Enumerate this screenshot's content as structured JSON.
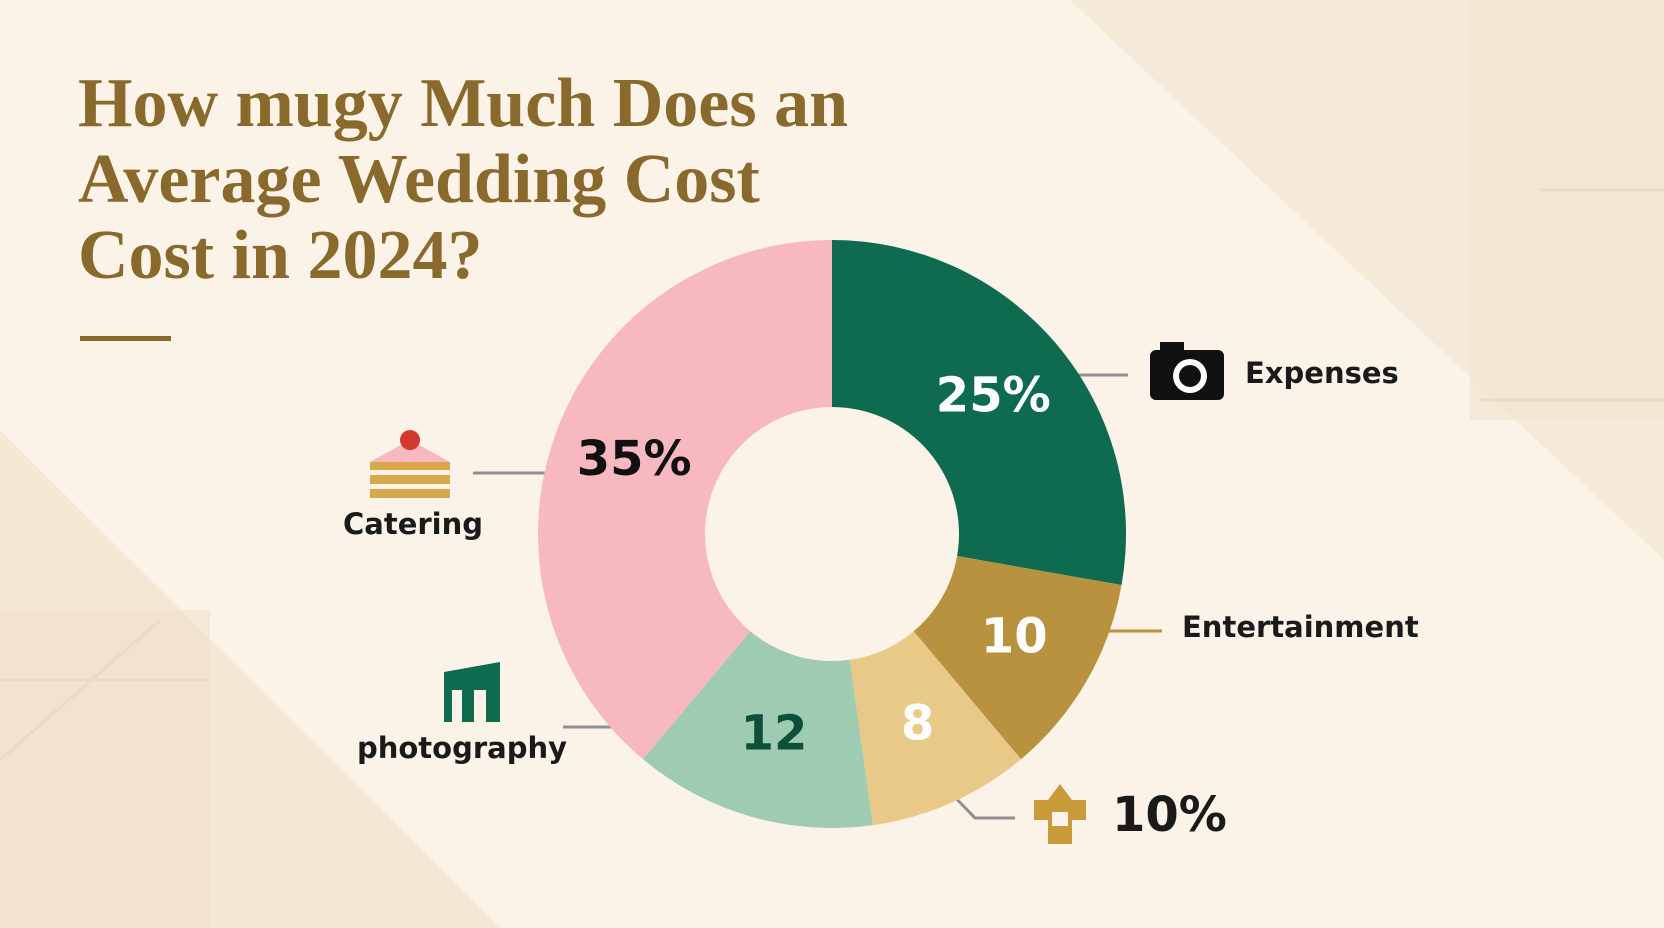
{
  "chart_data": {
    "type": "donut",
    "title_lines": [
      "How mugy Much Does an",
      "Average Wedding Cost",
      "Cost in 2024?"
    ],
    "categories": [
      "Expenses",
      "Entertainment",
      null,
      "photography",
      "Catering"
    ],
    "values": [
      25,
      10,
      8,
      12,
      35
    ],
    "value_labels": [
      "25%",
      "10",
      "8",
      "12",
      "35%"
    ],
    "colors": [
      "#0f6b50",
      "#b8923f",
      "#e9c987",
      "#9fcbb2",
      "#f7b8c0"
    ],
    "annotation": "10%"
  }
}
